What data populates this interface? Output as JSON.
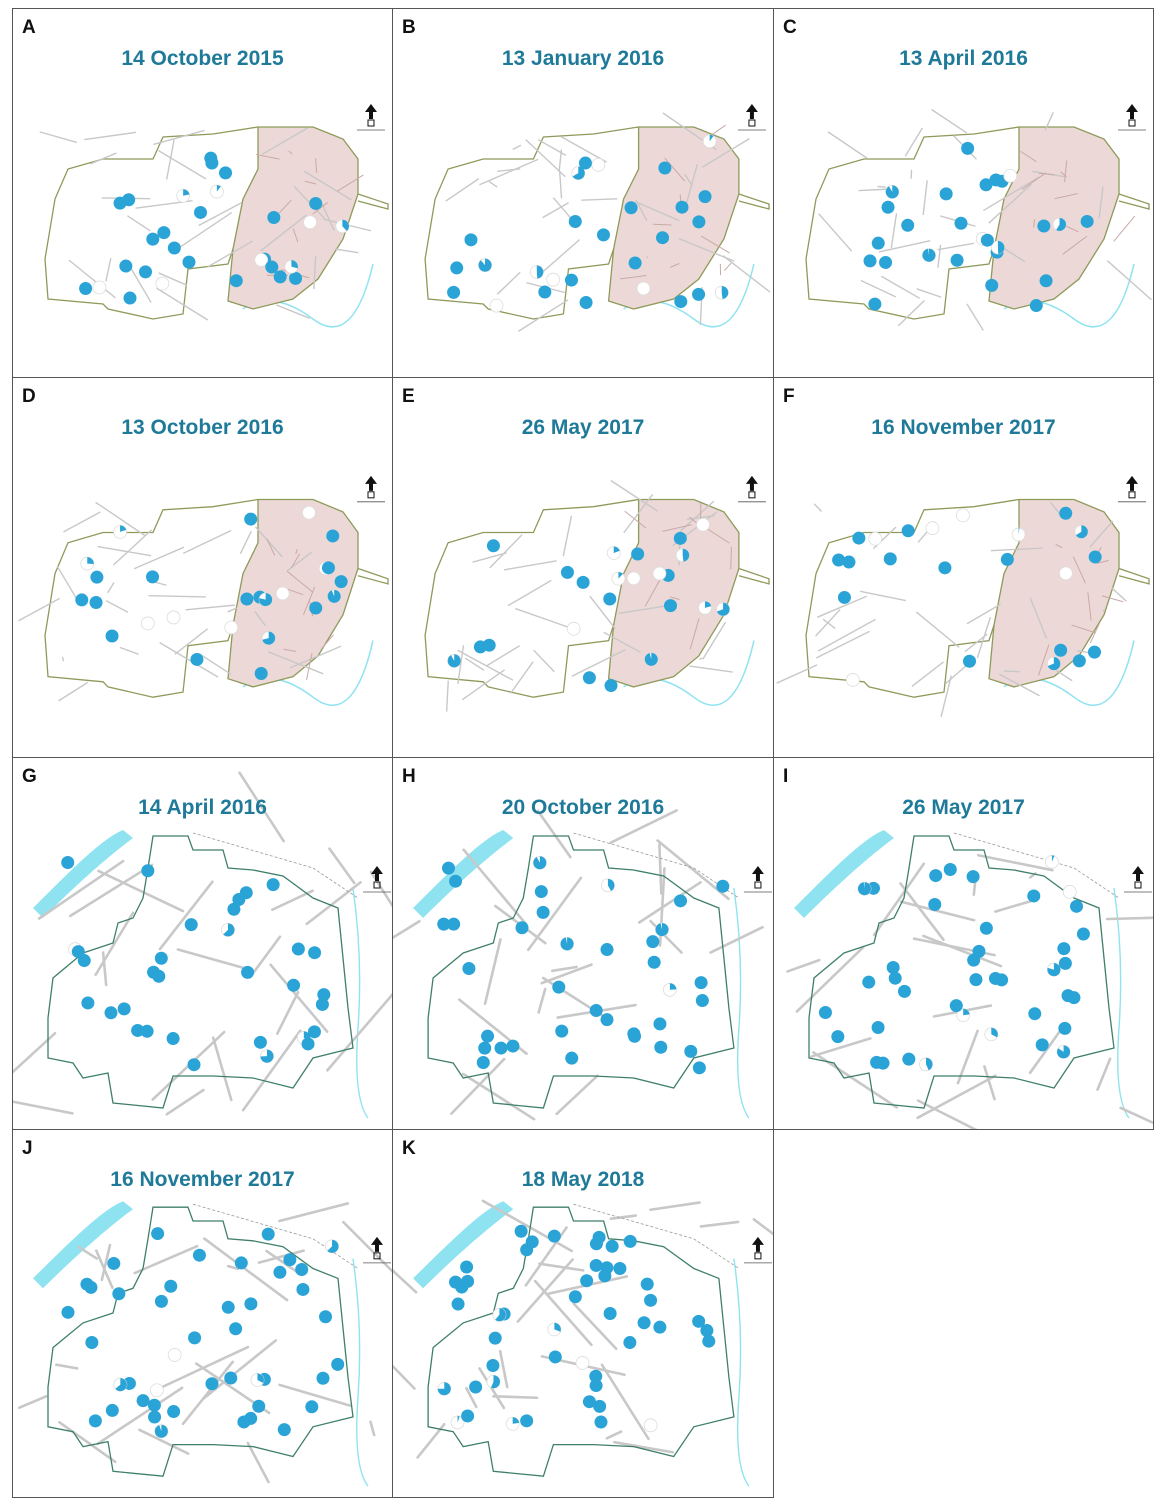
{
  "colors": {
    "marker": "#2aa3d6",
    "marker_empty": "#ffffff",
    "shaded_zone": "#ecd8d6",
    "road": "#c8c8c8",
    "boundary_a": "#8e9a5a",
    "boundary_b": "#3f7f6a",
    "water": "#8fe3f0",
    "title": "#1f7a99"
  },
  "panels": [
    {
      "letter": "A",
      "title": "14 October 2015",
      "map": "site-1"
    },
    {
      "letter": "B",
      "title": "13 January 2016",
      "map": "site-1"
    },
    {
      "letter": "C",
      "title": "13 April 2016",
      "map": "site-1"
    },
    {
      "letter": "D",
      "title": "13 October 2016",
      "map": "site-1"
    },
    {
      "letter": "E",
      "title": "26 May 2017",
      "map": "site-1"
    },
    {
      "letter": "F",
      "title": "16 November 2017",
      "map": "site-1"
    },
    {
      "letter": "G",
      "title": "14 April 2016",
      "map": "site-2"
    },
    {
      "letter": "H",
      "title": "20 October 2016",
      "map": "site-2"
    },
    {
      "letter": "I",
      "title": "26 May 2017",
      "map": "site-2"
    },
    {
      "letter": "J",
      "title": "16 November 2017",
      "map": "site-2"
    },
    {
      "letter": "K",
      "title": "18 May 2018",
      "map": "site-2"
    }
  ],
  "north_arrow_icon": "north-arrow-icon"
}
